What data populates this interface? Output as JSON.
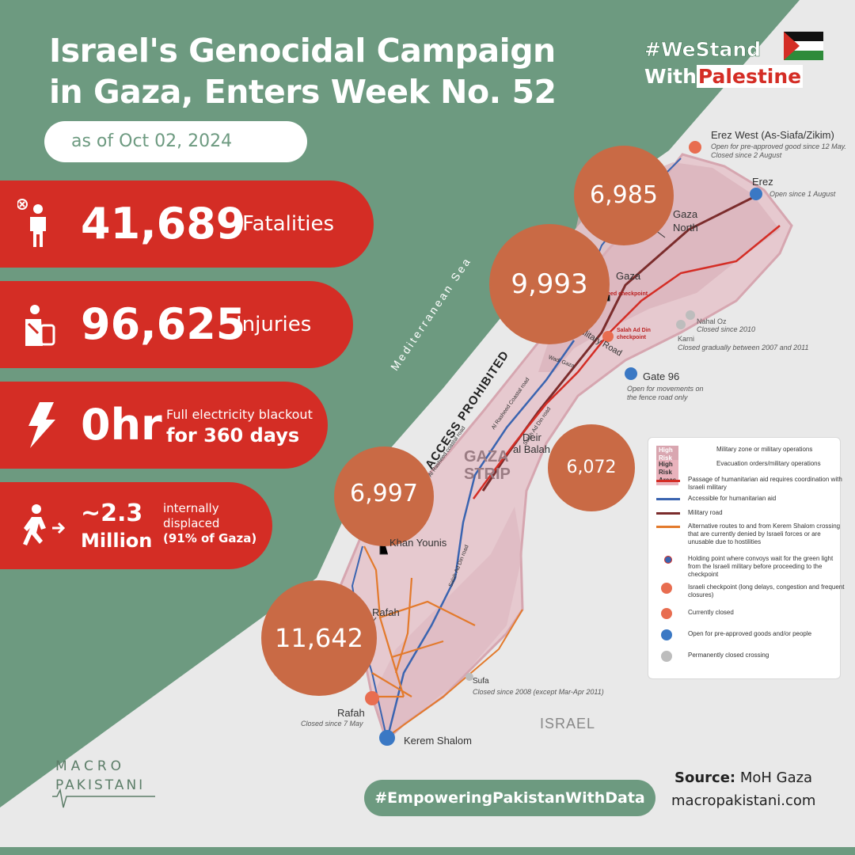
{
  "title_line1": "Israel's Genocidal Campaign",
  "title_line2": "in Gaza, Enters Week No. 52",
  "date_label": "as of Oct 02, 2024",
  "hashtag": {
    "line1": "#WeStand",
    "line2a": "With",
    "line2b": "Palestine"
  },
  "stats": {
    "fatalities": {
      "value": "41,689",
      "label": "Fatalities"
    },
    "injuries": {
      "value": "96,625",
      "label": "Injuries"
    },
    "electricity": {
      "value": "0hr",
      "label_line1": "Full electricity blackout",
      "label_line2": "for 360 days"
    },
    "displaced": {
      "value_line1": "~2.3",
      "value_line2": "Million",
      "label_line1": "internally",
      "label_line2": "displaced",
      "label_line3": "(91% of Gaza)"
    }
  },
  "map": {
    "sea_label": "Mediterranean Sea",
    "access_label": "ACCESS PROHIBITED",
    "strip_label_line1": "GAZA",
    "strip_label_line2": "STRIP",
    "israel_label": "ISRAEL",
    "governorates": [
      {
        "name_line1": "Gaza",
        "name_line2": "North",
        "value": "6,985"
      },
      {
        "name_line1": "Gaza",
        "name_line2": "",
        "value": "9,993"
      },
      {
        "name_line1": "Deir",
        "name_line2": "al Balah",
        "value": "6,072"
      },
      {
        "name_line1": "Khan Younis",
        "name_line2": "",
        "value": "6,997"
      },
      {
        "name_line1": "Rafah",
        "name_line2": "",
        "value": "11,642"
      }
    ],
    "roads": {
      "coastal": "Al Rasheed Coastal road",
      "coastal2": "Al Rasheed coastal road",
      "salah": "Salah Ad Din road",
      "salah2": "Salah Ad Din road",
      "military": "Military Road",
      "wadi": "Wadi Gaza",
      "checkpoint1": "Rasheed checkpoint",
      "checkpoint2_line1": "Salah Ad Din",
      "checkpoint2_line2": "checkpoint"
    },
    "crossings": {
      "erez_west": {
        "name": "Erez West (As-Siafa/Zikim)",
        "note1": "Open for pre-approved good since 12 May.",
        "note2": "Closed since 2 August"
      },
      "erez": {
        "name": "Erez",
        "note": "Open since 1 August"
      },
      "nahal_oz": {
        "name": "Nahal Oz",
        "note": "Closed since 2010"
      },
      "karni": {
        "name": "Karni",
        "note": "Closed gradually between 2007 and 2011"
      },
      "gate96": {
        "name": "Gate 96",
        "note1": "Open for movements on",
        "note2": "the fence road only"
      },
      "sufa": {
        "name": "Sufa",
        "note": "Closed since  2008 (except Mar-Apr 2011)"
      },
      "rafah": {
        "name": "Rafah",
        "note": "Closed since 7 May"
      },
      "kerem": {
        "name": "Kerem Shalom"
      }
    },
    "legend": [
      {
        "badge": "High Risk Areas",
        "text": "Military zone or military operations"
      },
      {
        "badge": "High Risk Areas",
        "text": "Evacuation orders/military operations"
      },
      {
        "text": "Passage of humanitarian aid requires coordination with Israeli military"
      },
      {
        "text": "Accessible for humanitarian aid"
      },
      {
        "text": "Military road"
      },
      {
        "text": "Alternative routes to and from Kerem Shalom crossing that are currently denied by Israeli forces or are unusable due to hostilities"
      },
      {
        "text": "Holding point where convoys wait for the green light from the Israeli military before proceeding to the checkpoint"
      },
      {
        "text": "Israeli checkpoint (long delays, congestion and frequent closures)"
      },
      {
        "text": "Currently closed"
      },
      {
        "text": "Open for pre-approved goods and/or people"
      },
      {
        "text": "Permanently closed crossing"
      }
    ]
  },
  "logo": {
    "line1": "MACRO",
    "line2": "PAKISTANI"
  },
  "footer": {
    "tagline": "#EmpoweringPakistanWithData",
    "source_label": "Source:",
    "source_value": " MoH Gaza",
    "website": "macropakistani.com"
  },
  "colors": {
    "green": "#6d9a80",
    "red": "#d42d25",
    "circle": "#c96a45",
    "strip": "#e6c9cf"
  }
}
